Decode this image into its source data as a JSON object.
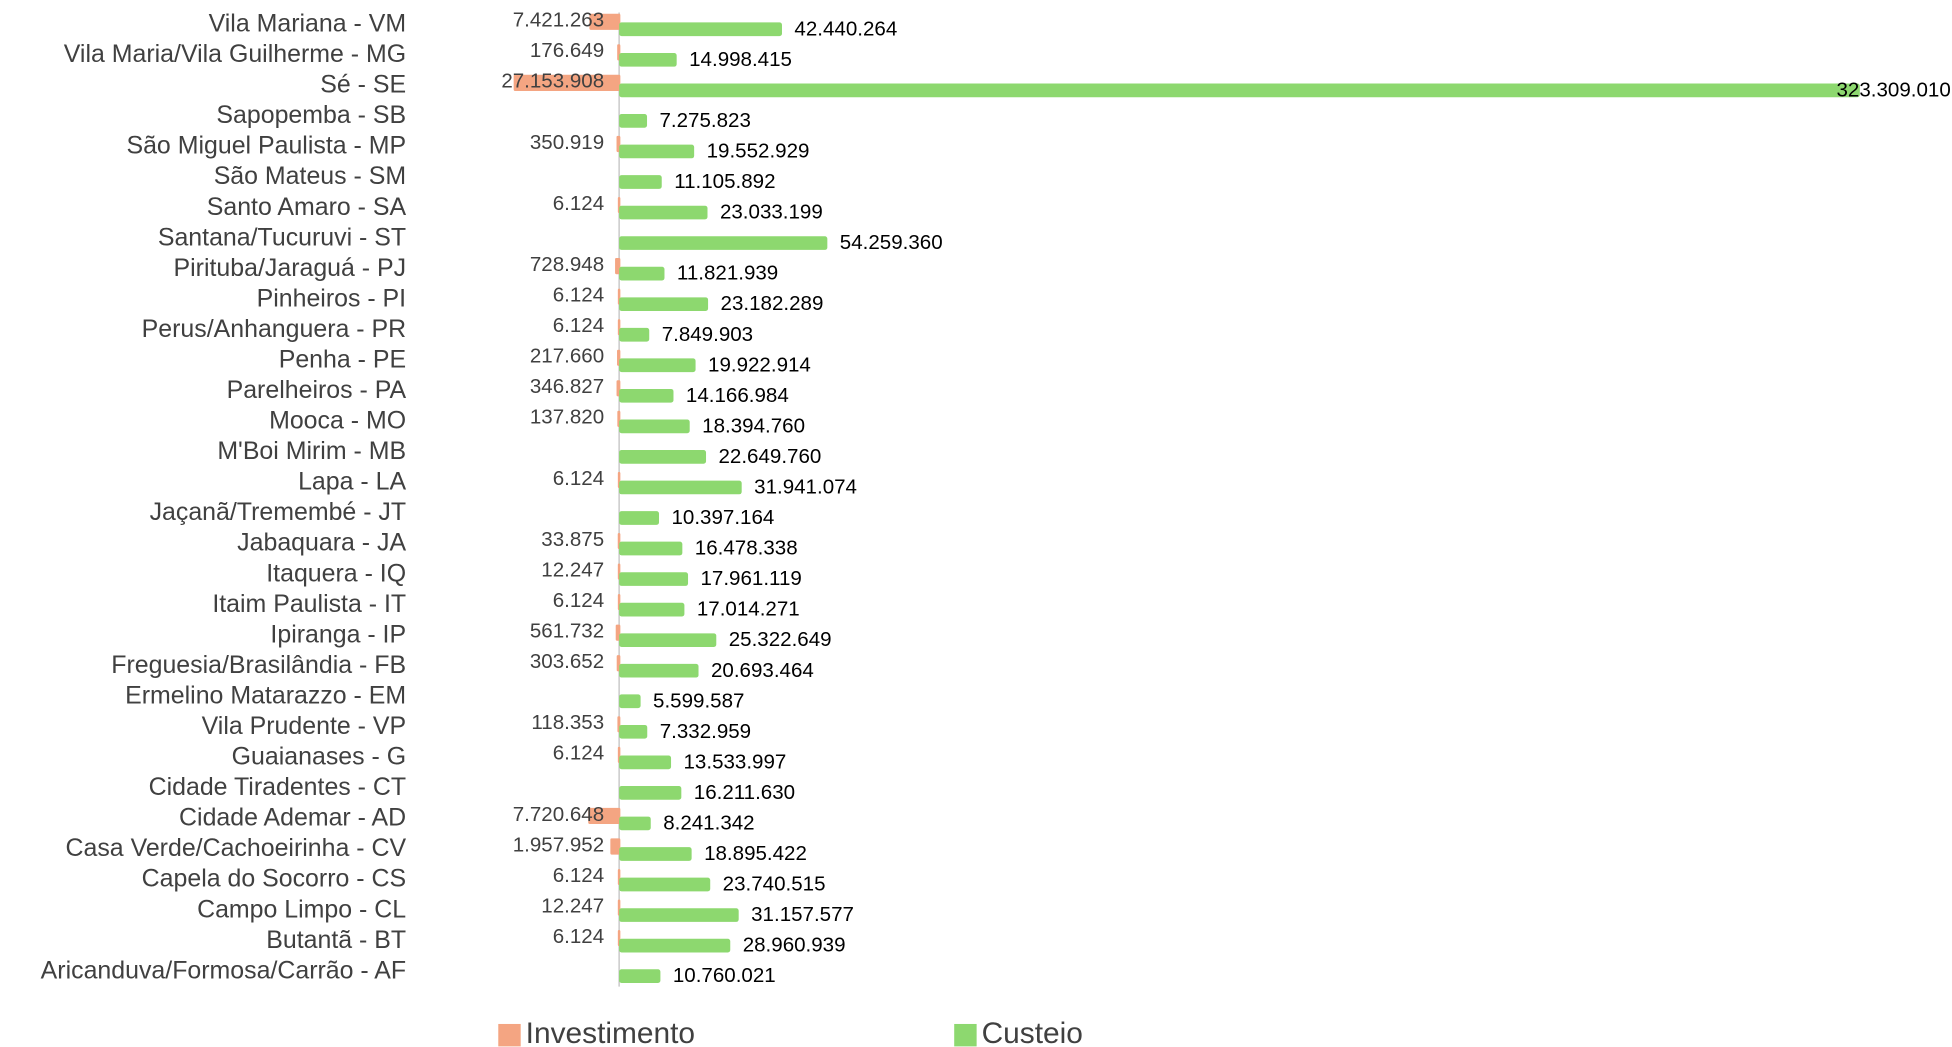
{
  "chart_data": {
    "type": "bar",
    "orientation": "horizontal",
    "categories": [
      "Vila Mariana - VM",
      "Vila Maria/Vila Guilherme - MG",
      "Sé - SE",
      "Sapopemba - SB",
      "São Miguel Paulista - MP",
      "São Mateus - SM",
      "Santo Amaro - SA",
      "Santana/Tucuruvi - ST",
      "Pirituba/Jaraguá - PJ",
      "Pinheiros - PI",
      "Perus/Anhanguera - PR",
      "Penha - PE",
      "Parelheiros - PA",
      "Mooca - MO",
      "M'Boi Mirim - MB",
      "Lapa - LA",
      "Jaçanã/Tremembé - JT",
      "Jabaquara - JA",
      "Itaquera - IQ",
      "Itaim Paulista - IT",
      "Ipiranga - IP",
      "Freguesia/Brasilândia - FB",
      "Ermelino Matarazzo - EM",
      "Vila Prudente - VP",
      "Guaianases - G",
      "Cidade Tiradentes - CT",
      "Cidade Ademar - AD",
      "Casa Verde/Cachoeirinha - CV",
      "Capela do Socorro - CS",
      "Campo Limpo - CL",
      "Butantã - BT",
      "Aricanduva/Formosa/Carrão - AF"
    ],
    "series": [
      {
        "name": "Investimento",
        "color": "#f4a582",
        "direction": "left",
        "values": [
          7421263,
          176649,
          27153908,
          null,
          350919,
          null,
          6124,
          null,
          728948,
          6124,
          6124,
          217660,
          346827,
          137820,
          null,
          6124,
          null,
          33875,
          12247,
          6124,
          561732,
          303652,
          null,
          118353,
          6124,
          null,
          7720648,
          1957952,
          6124,
          12247,
          6124,
          null
        ],
        "value_labels": [
          "7.421.263",
          "176.649",
          "27.153.908",
          null,
          "350.919",
          null,
          "6.124",
          null,
          "728.948",
          "6.124",
          "6.124",
          "217.660",
          "346.827",
          "137.820",
          null,
          "6.124",
          null,
          "33.875",
          "12.247",
          "6.124",
          "561.732",
          "303.652",
          null,
          "118.353",
          "6.124",
          null,
          "7.720.648",
          "1.957.952",
          "6.124",
          "12.247",
          "6.124",
          null
        ]
      },
      {
        "name": "Custeio",
        "color": "#8dd86f",
        "direction": "right",
        "values": [
          42440264,
          14998415,
          323309010,
          7275823,
          19552929,
          11105892,
          23033199,
          54259360,
          11821939,
          23182289,
          7849903,
          19922914,
          14166984,
          18394760,
          22649760,
          31941074,
          10397164,
          16478338,
          17961119,
          17014271,
          25322649,
          20693464,
          5599587,
          7332959,
          13533997,
          16211630,
          8241342,
          18895422,
          23740515,
          31157577,
          28960939,
          10760021
        ],
        "value_labels": [
          "42.440.264",
          "14.998.415",
          "323.309.010",
          "7.275.823",
          "19.552.929",
          "11.105.892",
          "23.033.199",
          "54.259.360",
          "11.821.939",
          "23.182.289",
          "7.849.903",
          "19.922.914",
          "14.166.984",
          "18.394.760",
          "22.649.760",
          "31.941.074",
          "10.397.164",
          "16.478.338",
          "17.961.119",
          "17.014.271",
          "25.322.649",
          "20.693.464",
          "5.599.587",
          "7.332.959",
          "13.533.997",
          "16.211.630",
          "8.241.342",
          "18.895.422",
          "23.740.515",
          "31.157.577",
          "28.960.939",
          "10.760.021"
        ]
      }
    ],
    "legend": "bottom"
  }
}
